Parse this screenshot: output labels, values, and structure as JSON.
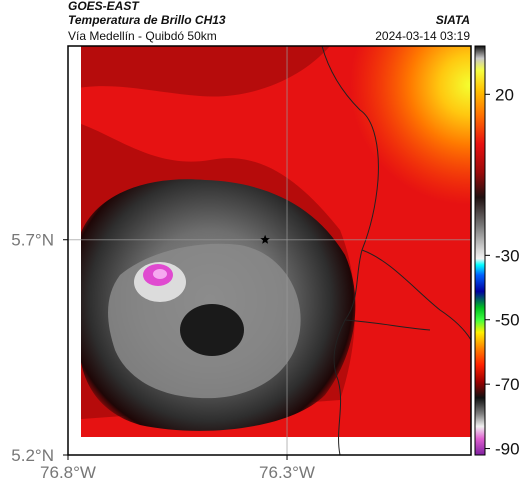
{
  "header": {
    "title": "GOES-EAST",
    "subtitle": "Temperatura de Brillo CH13",
    "location": "Vía Medellín - Quibdó 50km",
    "organization": "SIATA",
    "timestamp": "2024-03-14 03:19"
  },
  "map": {
    "lon_range": [
      -76.8,
      -75.88
    ],
    "lat_range": [
      5.2,
      6.15
    ],
    "lon_ticks": [
      {
        "value": -76.8,
        "label": "76.8°W"
      },
      {
        "value": -76.3,
        "label": "76.3°W"
      }
    ],
    "lat_ticks": [
      {
        "value": 5.7,
        "label": "5.7°N"
      },
      {
        "value": 5.2,
        "label": "5.2°N"
      }
    ],
    "gridlines": true,
    "marker": {
      "lon": -76.35,
      "lat": 5.7,
      "symbol": "star"
    },
    "features": [
      "brightness-temperature-field",
      "cold-cloud-cluster",
      "department-borders",
      "gridlines",
      "star-marker"
    ]
  },
  "colorbar": {
    "orientation": "vertical",
    "placement": "right",
    "range": [
      -92,
      35
    ],
    "tick_labels": [
      {
        "value": 20,
        "label": "20"
      },
      {
        "value": -30,
        "label": "-30"
      },
      {
        "value": -50,
        "label": "-50"
      },
      {
        "value": -70,
        "label": "-70"
      },
      {
        "value": -90,
        "label": "-90"
      }
    ]
  },
  "colors": {
    "warm": "#e01010",
    "hot": "#ffe020",
    "cold_cloud": "#2a2a2a",
    "very_cold": "#e040c0"
  }
}
